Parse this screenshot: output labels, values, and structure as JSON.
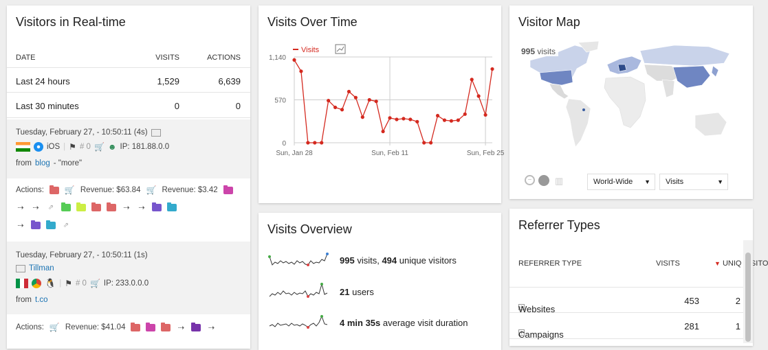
{
  "realtime": {
    "title": "Visitors in Real-time",
    "head": {
      "date": "DATE",
      "visits": "VISITS",
      "actions": "ACTIONS"
    },
    "rows": [
      {
        "label": "Last 24 hours",
        "visits": "1,529",
        "actions": "6,639"
      },
      {
        "label": "Last 30 minutes",
        "visits": "0",
        "actions": "0"
      }
    ],
    "visit1": {
      "datetime": "Tuesday, February 27, - 10:50:11 (4s)",
      "os": "iOS",
      "goals": "# 0",
      "ip": "IP: 181.88.0.0",
      "from_prefix": "from",
      "from_link": "blog",
      "from_suffix": "- \"more\"",
      "actions_label": "Actions:",
      "revenue1": "Revenue: $63.84",
      "revenue2": "Revenue: $3.42"
    },
    "visit2": {
      "datetime": "Tuesday, February 27, - 10:50:11 (1s)",
      "name": "Tillman",
      "goals": "# 0",
      "ip": "IP: 233.0.0.0",
      "from_prefix": "from",
      "from_link": "t.co",
      "actions_label": "Actions:",
      "revenue1": "Revenue: $41.04"
    },
    "colors": {
      "link": "#1b73b3"
    }
  },
  "visits_over_time": {
    "title": "Visits Over Time",
    "legend": "Visits",
    "icons": [
      "evolution-graph-icon"
    ]
  },
  "chart_data": {
    "type": "line",
    "title": "Visits Over Time",
    "x_tick_labels": [
      "Sun, Jan 28",
      "Sun, Feb 11",
      "Sun, Feb 25"
    ],
    "y_tick_labels": [
      "0",
      "570",
      "1,140"
    ],
    "ylim": [
      0,
      1140
    ],
    "series": [
      {
        "name": "Visits",
        "color": "#d4291f",
        "values": [
          1100,
          950,
          0,
          0,
          0,
          560,
          470,
          440,
          680,
          600,
          340,
          570,
          550,
          150,
          330,
          310,
          320,
          310,
          280,
          0,
          0,
          360,
          300,
          290,
          300,
          380,
          840,
          620,
          370,
          980
        ]
      }
    ]
  },
  "visitor_map": {
    "title": "Visitor Map",
    "summary_value": "995",
    "summary_label": "visits",
    "select1": "World-Wide",
    "select2": "Visits",
    "accent": "#3a5da0"
  },
  "visits_overview": {
    "title": "Visits Overview",
    "rows": [
      {
        "value": "995",
        "label": "visits,",
        "value2": "494",
        "label2": "unique visitors"
      },
      {
        "value": "21",
        "label": "users",
        "value2": "",
        "label2": ""
      },
      {
        "value": "4 min 35s",
        "label": "average visit duration",
        "value2": "",
        "label2": ""
      }
    ]
  },
  "referrer_types": {
    "title": "Referrer Types",
    "head": {
      "type": "REFERRER TYPE",
      "visits": "VISITS",
      "unique": "UNIQ VISITO"
    },
    "rows": [
      {
        "label": "Websites",
        "visits": "453",
        "unique": "2"
      },
      {
        "label": "Campaigns",
        "visits": "281",
        "unique": "1"
      }
    ]
  }
}
